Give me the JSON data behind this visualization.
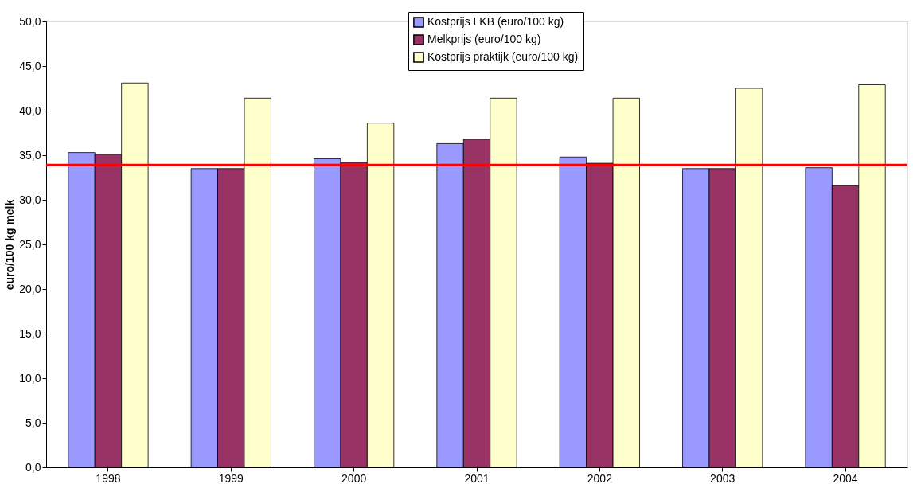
{
  "chart_data": {
    "type": "bar",
    "ylabel": "euro/100 kg melk",
    "categories": [
      "1998",
      "1999",
      "2000",
      "2001",
      "2002",
      "2003",
      "2004"
    ],
    "series": [
      {
        "name": "Kostprijs LKB (euro/100 kg)",
        "color": "#9999ff",
        "values": [
          35.3,
          33.5,
          34.6,
          36.3,
          34.8,
          33.5,
          33.6
        ]
      },
      {
        "name": "Melkprijs (euro/100 kg)",
        "color": "#993366",
        "values": [
          35.1,
          33.5,
          34.2,
          36.8,
          34.1,
          33.5,
          31.6
        ]
      },
      {
        "name": "Kostprijs praktijk (euro/100 kg)",
        "color": "#ffffcc",
        "values": [
          43.1,
          41.4,
          38.6,
          41.4,
          41.4,
          42.5,
          42.9
        ]
      }
    ],
    "ylim": [
      0,
      50
    ],
    "yticks": [
      {
        "value": 0,
        "label": "0,0"
      },
      {
        "value": 5,
        "label": "5,0"
      },
      {
        "value": 10,
        "label": "10,0"
      },
      {
        "value": 15,
        "label": "15,0"
      },
      {
        "value": 20,
        "label": "20,0"
      },
      {
        "value": 25,
        "label": "25,0"
      },
      {
        "value": 30,
        "label": "30,0"
      },
      {
        "value": 35,
        "label": "35,0"
      },
      {
        "value": 40,
        "label": "40,0"
      },
      {
        "value": 45,
        "label": "45,0"
      },
      {
        "value": 50,
        "label": "50,0"
      }
    ],
    "ref_lines": [
      {
        "axis": "y",
        "value": 33.9,
        "color": "#ff0000"
      }
    ],
    "grid": false,
    "legend": "top right"
  }
}
